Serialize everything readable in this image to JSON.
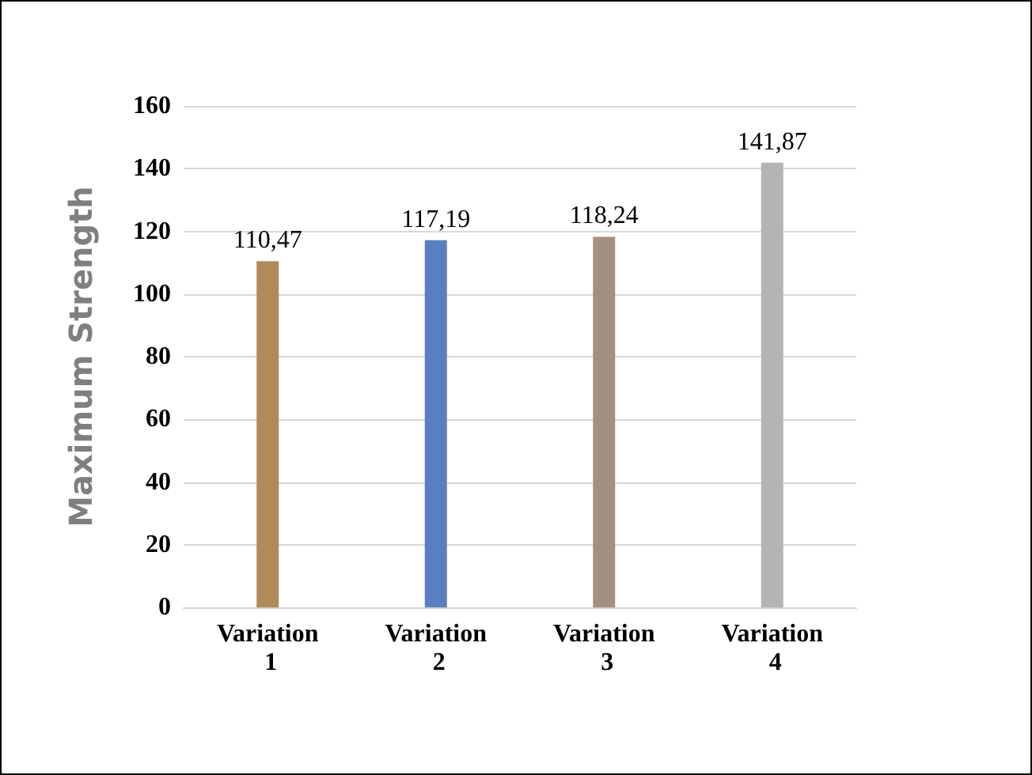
{
  "chart_data": {
    "type": "bar",
    "ylabel": "Maximum Strength",
    "categories": [
      "Variation 1",
      "Variation 2",
      "Variation 3",
      "Variation 4"
    ],
    "values": [
      110.47,
      117.19,
      118.24,
      141.87
    ],
    "value_labels": [
      "110,47",
      "117,19",
      "118,24",
      "141,87"
    ],
    "colors": [
      "#b08a5a",
      "#5a7fc0",
      "#a39080",
      "#b4b4b4"
    ],
    "ylim": [
      0,
      160
    ],
    "yticks": [
      0,
      20,
      40,
      60,
      80,
      100,
      120,
      140,
      160
    ],
    "grid": "y"
  }
}
